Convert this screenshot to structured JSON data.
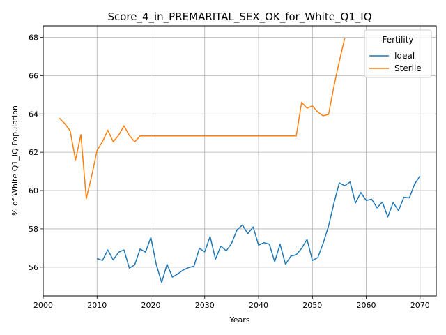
{
  "chart_data": {
    "type": "line",
    "title": "Score_4_in_PREMARITAL_SEX_OK_for_White_Q1_IQ",
    "xlabel": "Years",
    "ylabel": "% of White Q1_IQ Population",
    "xlim": [
      2000,
      2073
    ],
    "ylim": [
      54.5,
      68.6
    ],
    "xticks": [
      2000,
      2010,
      2020,
      2030,
      2040,
      2050,
      2060,
      2070
    ],
    "yticks": [
      56,
      58,
      60,
      62,
      64,
      66,
      68
    ],
    "grid": true,
    "legend": {
      "title": "Fertility",
      "placement": "top-right"
    },
    "series": [
      {
        "name": "Ideal",
        "color": "#1f77b4",
        "x": [
          2010,
          2011,
          2012,
          2013,
          2014,
          2015,
          2016,
          2017,
          2018,
          2019,
          2020,
          2021,
          2022,
          2023,
          2024,
          2025,
          2026,
          2027,
          2028,
          2029,
          2030,
          2031,
          2032,
          2033,
          2034,
          2035,
          2036,
          2037,
          2038,
          2039,
          2040,
          2041,
          2042,
          2043,
          2044,
          2045,
          2046,
          2047,
          2048,
          2049,
          2050,
          2051,
          2052,
          2053,
          2054,
          2055,
          2056,
          2057,
          2058,
          2059,
          2060,
          2061,
          2062,
          2063,
          2064,
          2065,
          2066,
          2067,
          2068,
          2069,
          2070
        ],
        "values": [
          56.45,
          56.35,
          56.9,
          56.38,
          56.78,
          56.9,
          55.95,
          56.12,
          56.95,
          56.78,
          57.55,
          56.15,
          55.2,
          56.15,
          55.48,
          55.65,
          55.85,
          55.98,
          56.05,
          56.98,
          56.8,
          57.6,
          56.42,
          57.1,
          56.85,
          57.25,
          57.95,
          58.2,
          57.75,
          58.1,
          57.15,
          57.28,
          57.2,
          56.28,
          57.2,
          56.15,
          56.58,
          56.65,
          56.98,
          57.45,
          56.35,
          56.5,
          57.25,
          58.15,
          59.35,
          60.4,
          60.25,
          60.45,
          59.35,
          59.9,
          59.48,
          59.55,
          59.1,
          59.4,
          58.62,
          59.38,
          58.95,
          59.65,
          59.62,
          60.35,
          60.77
        ]
      },
      {
        "name": "Sterile",
        "color": "#ff7f0e",
        "x": [
          2003,
          2004,
          2005,
          2006,
          2007,
          2008,
          2009,
          2010,
          2011,
          2012,
          2013,
          2014,
          2015,
          2016,
          2017,
          2018,
          2019,
          2020,
          2021,
          2022,
          2023,
          2024,
          2025,
          2026,
          2027,
          2028,
          2029,
          2030,
          2031,
          2032,
          2033,
          2034,
          2035,
          2036,
          2037,
          2038,
          2039,
          2040,
          2041,
          2042,
          2043,
          2044,
          2045,
          2046,
          2047,
          2048,
          2049,
          2050,
          2051,
          2052,
          2053,
          2054,
          2055,
          2056
        ],
        "values": [
          63.78,
          63.5,
          63.12,
          61.6,
          62.92,
          59.58,
          60.75,
          62.1,
          62.55,
          63.15,
          62.55,
          62.88,
          63.38,
          62.88,
          62.55,
          62.85,
          62.85,
          62.85,
          62.85,
          62.85,
          62.85,
          62.85,
          62.85,
          62.85,
          62.85,
          62.85,
          62.85,
          62.85,
          62.85,
          62.85,
          62.85,
          62.85,
          62.85,
          62.85,
          62.85,
          62.85,
          62.85,
          62.85,
          62.85,
          62.85,
          62.85,
          62.85,
          62.85,
          62.85,
          62.85,
          64.6,
          64.3,
          64.42,
          64.1,
          63.9,
          63.98,
          65.45,
          66.75,
          67.95
        ]
      }
    ]
  }
}
